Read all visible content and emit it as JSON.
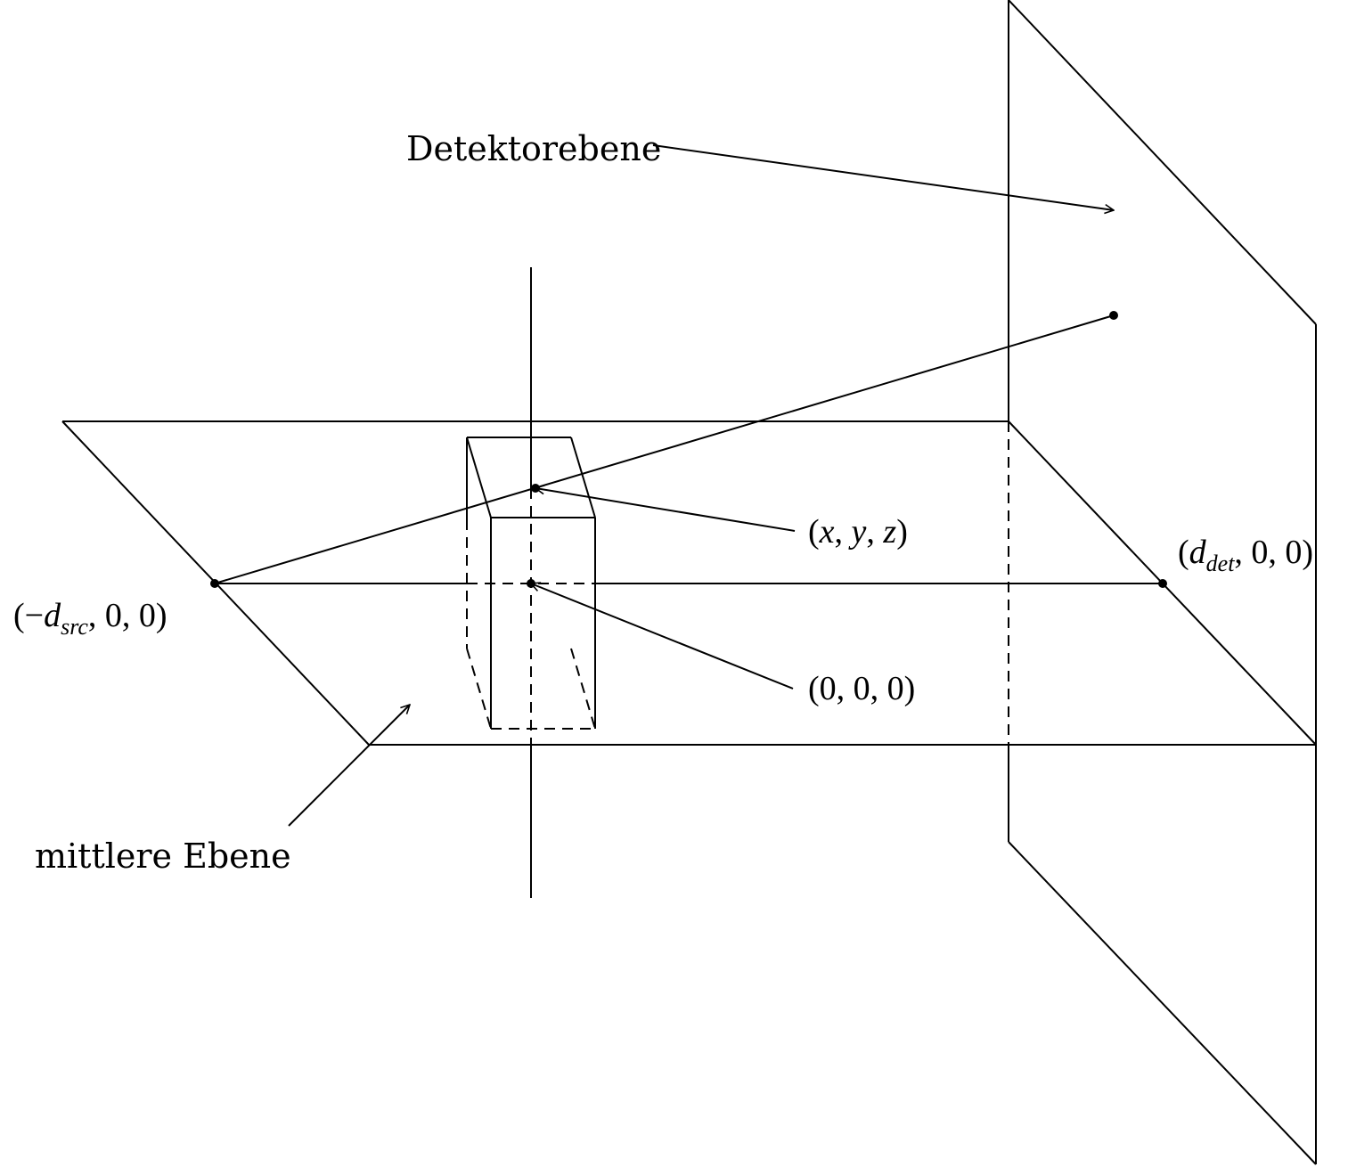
{
  "labels": {
    "detector_plane": "Detektorebene",
    "middle_plane": "mittlere Ebene",
    "point_xyz": "(x, y, z)",
    "origin": "(0, 0, 0)",
    "source": "(−d_src, 0, 0)",
    "detector_point": "(d_det, 0, 0)"
  },
  "math": {
    "x": "x",
    "y": "y",
    "z": "z",
    "zero": "0",
    "minus": "−",
    "d": "d",
    "src_sub": "src",
    "det_sub": "det",
    "open": "(",
    "close": ")",
    "comma": ", "
  }
}
